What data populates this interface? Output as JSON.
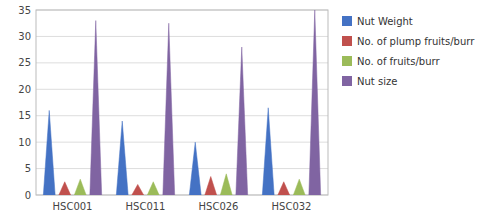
{
  "chart_data": {
    "type": "bar",
    "categories": [
      "HSC001",
      "HSC011",
      "HSC026",
      "HSC032"
    ],
    "series": [
      {
        "name": "Nut Weight",
        "color": "#4472C4",
        "values": [
          16,
          14,
          10,
          16.5
        ]
      },
      {
        "name": "No. of plump fruits/burr",
        "color": "#C0504D",
        "values": [
          2.5,
          2.0,
          3.5,
          2.5
        ]
      },
      {
        "name": "No. of fruits/burr",
        "color": "#9BBB59",
        "values": [
          3.0,
          2.5,
          4.0,
          3.0
        ]
      },
      {
        "name": "Nut size",
        "color": "#8064A2",
        "values": [
          33,
          32.5,
          28,
          35
        ]
      }
    ],
    "ylim": [
      0,
      35
    ],
    "yticks": [
      0,
      5,
      10,
      15,
      20,
      25,
      30,
      35
    ],
    "grid": true,
    "legend": "right"
  }
}
